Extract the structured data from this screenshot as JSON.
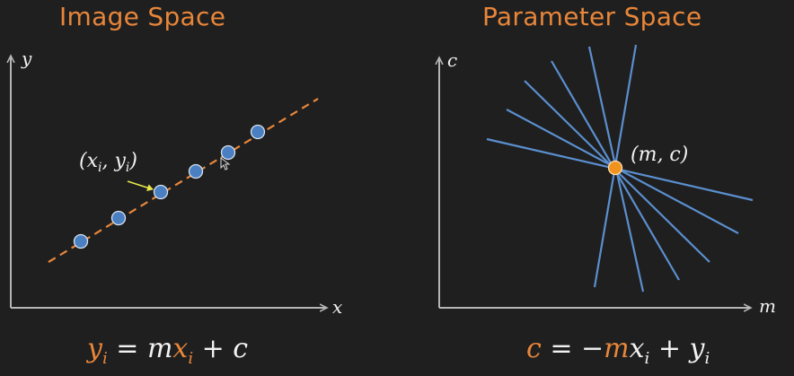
{
  "left_panel": {
    "title": "Image Space",
    "x_axis_label": "x",
    "y_axis_label": "y",
    "point_label": "(x_i, y_i)",
    "equation": "y_i = mx_i + c"
  },
  "right_panel": {
    "title": "Parameter Space",
    "x_axis_label": "m",
    "y_axis_label": "c",
    "point_label": "(m, c)",
    "equation": "c = −mx_i + y_i"
  },
  "colors": {
    "background": "#1f1f1f",
    "title": "#e8863a",
    "axis": "#b5b5b5",
    "fit_line": "#e8863a",
    "points": "#4a7fc1",
    "point_outline": "#d8e2f0",
    "param_lines": "#5b8fcf",
    "intersection": "#f0921e",
    "arrow": "#e8e84a",
    "text": "#f2f2f2",
    "equation_accent": "#e8863a"
  }
}
